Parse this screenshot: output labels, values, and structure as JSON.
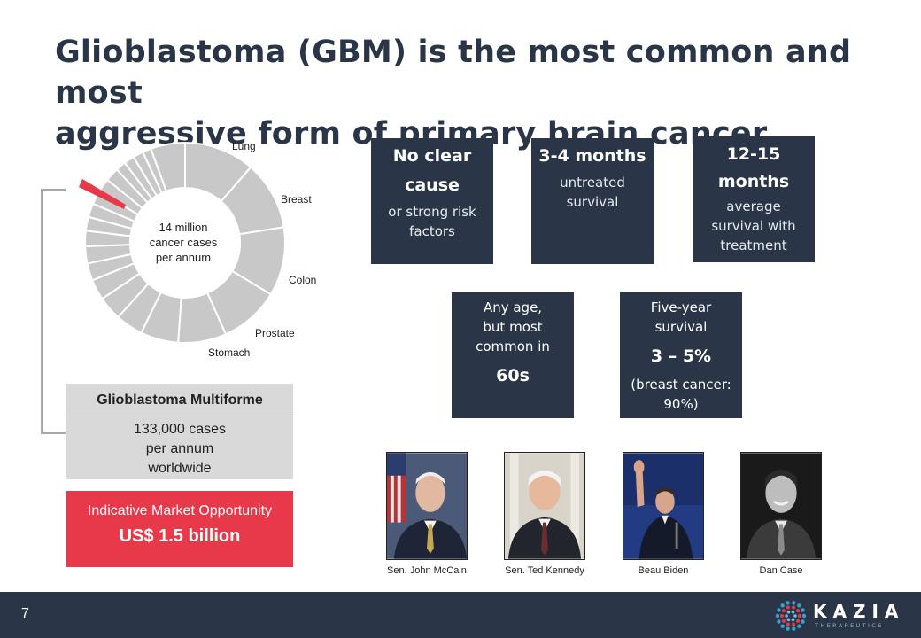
{
  "title": {
    "line1": "Glioblastoma (GBM) is the most common and most",
    "line2": "aggressive form of primary brain cancer"
  },
  "donut": {
    "center_line1": "14 million",
    "center_line2": "cancer cases",
    "center_line3": "per annum",
    "labels": {
      "lung": "Lung",
      "breast": "Breast",
      "colon": "Colon",
      "prostate": "Prostate",
      "stomach": "Stomach"
    },
    "colors": {
      "segment": "#c8c8c8",
      "highlight": "#e8394a"
    }
  },
  "gbm": {
    "title": "Glioblastoma Multiforme",
    "line1": "133,000 cases",
    "line2": "per annum",
    "line3": "worldwide"
  },
  "market": {
    "label": "Indicative Market Opportunity",
    "value": "US$ 1.5 billion"
  },
  "stats": {
    "cause": {
      "line1": "No clear",
      "line2": "cause",
      "sub1": "or strong risk",
      "sub2": "factors"
    },
    "untreated": {
      "big": "3-4 months",
      "sub1": "untreated",
      "sub2": "survival"
    },
    "treated": {
      "big1": "12-15",
      "big2": "months",
      "sub1": "average",
      "sub2": "survival with",
      "sub3": "treatment"
    },
    "age": {
      "line1": "Any age,",
      "line2": "but most",
      "line3": "common in",
      "big": "60s"
    },
    "five_year": {
      "line1": "Five-year",
      "line2": "survival",
      "big": "3 – 5%",
      "sub1": "(breast cancer:",
      "sub2": "90%)"
    }
  },
  "people": [
    {
      "caption": "Sen. John McCain"
    },
    {
      "caption": "Sen. Ted Kennedy"
    },
    {
      "caption": "Beau Biden"
    },
    {
      "caption": "Dan Case"
    }
  ],
  "footer": {
    "page_number": "7",
    "logo_word": "KAZIA",
    "logo_sub": "THERAPEUTICS"
  }
}
